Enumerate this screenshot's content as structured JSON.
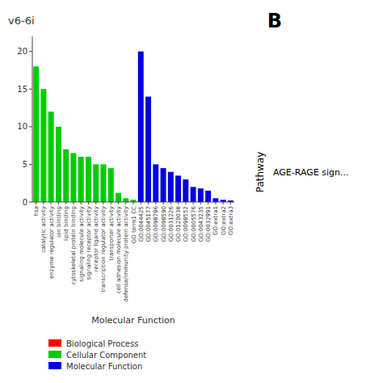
{
  "chart_data": {
    "type": "bar",
    "title": "v6-6i",
    "xlabel": "Molecular Function",
    "categories": [
      "hsa",
      "catalytic activity",
      "enzyme regulator activity",
      "ion binding",
      "lipid binding",
      "cytoskeletal protein binding",
      "signaling molecule activity",
      "signaling receptor activity",
      "receptor ligand activity",
      "transcription regulator activity",
      "transporter activity",
      "cell adhesion molecule activity",
      "defense/immunity protein activity",
      "GO term1 CC",
      "GO:0044425",
      "GO:0045177",
      "GO:0098796",
      "GO:0098590",
      "GO:0031226",
      "GO:0120038",
      "GO:0098552",
      "GO:0005576",
      "GO:0043235",
      "GO:0032991",
      "GO:extra1",
      "GO:extra2",
      "GO:extra3"
    ],
    "values": [
      18,
      15,
      12,
      10,
      7,
      6.5,
      6,
      6,
      5,
      5,
      4.5,
      1.2,
      0.5,
      0.3,
      20,
      14,
      5,
      4.5,
      4,
      3.5,
      3,
      2,
      1.8,
      1.5,
      0.5,
      0.3,
      0.2
    ],
    "colors": [
      "#00cc00",
      "#00cc00",
      "#00cc00",
      "#00cc00",
      "#00cc00",
      "#00cc00",
      "#00cc00",
      "#00cc00",
      "#00cc00",
      "#00cc00",
      "#00cc00",
      "#00cc00",
      "#00cc00",
      "#00cc00",
      "#0000dd",
      "#0000dd",
      "#0000dd",
      "#0000dd",
      "#0000dd",
      "#0000dd",
      "#0000dd",
      "#0000dd",
      "#0000dd",
      "#0000dd",
      "#0000dd",
      "#0000dd",
      "#0000dd"
    ],
    "ylim": [
      0,
      22
    ],
    "yticks": [
      0,
      5,
      10,
      15,
      20
    ],
    "grid": false,
    "legend": "lower left",
    "legend_entries": [
      {
        "name": "Biological Process",
        "color": "#ff0000"
      },
      {
        "name": "Cellular Component",
        "color": "#00cc00"
      },
      {
        "name": "Molecular Function",
        "color": "#0000dd"
      }
    ],
    "annotations": [
      "B",
      "Pathway",
      "AGE-RAGE sign..."
    ]
  }
}
